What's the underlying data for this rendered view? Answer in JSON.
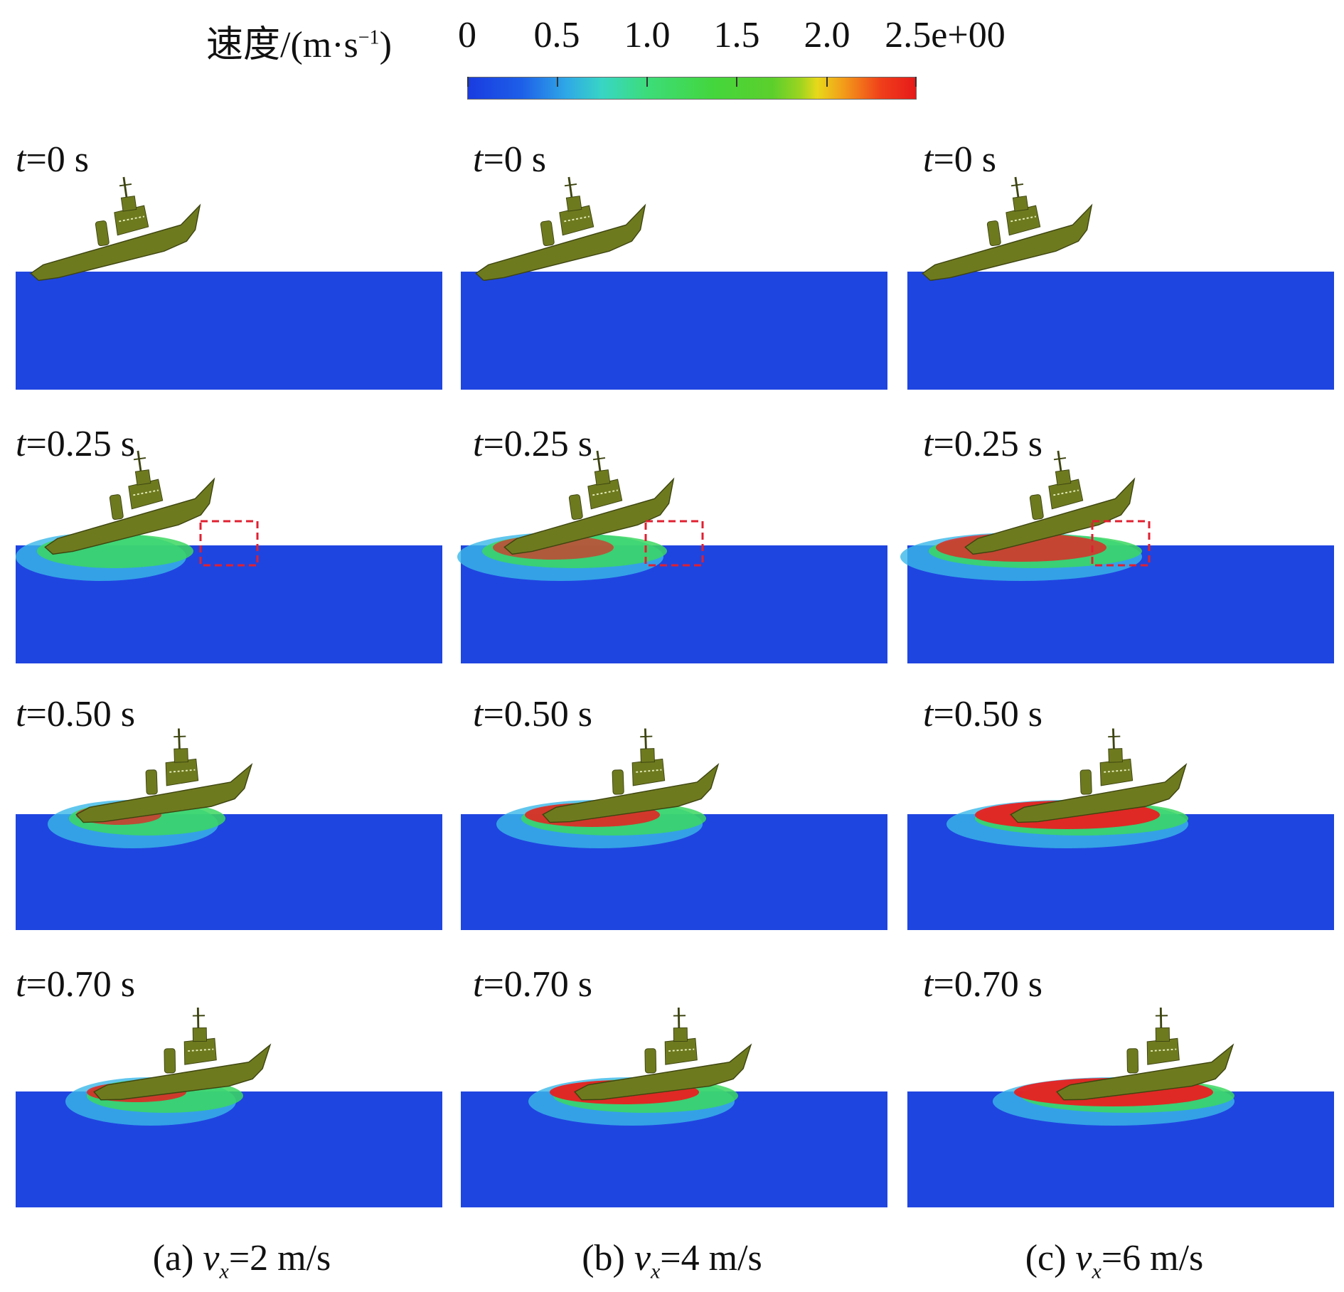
{
  "colorbar": {
    "title_main": "速度/(m·s",
    "title_sup": "−1",
    "title_close": ")",
    "ticks": [
      "0",
      "0.5",
      "1.0",
      "1.5",
      "2.0",
      "2.5e+00"
    ]
  },
  "time_labels": {
    "prefix": "t",
    "rows": [
      "=0 s",
      "=0.25 s",
      "=0.50 s",
      "=0.70 s"
    ]
  },
  "captions": [
    {
      "prefix": "(a) ",
      "var": "v",
      "sub": "x",
      "value": "=2 m/s"
    },
    {
      "prefix": "(b) ",
      "var": "v",
      "sub": "x",
      "value": "=4 m/s"
    },
    {
      "prefix": "(c) ",
      "var": "v",
      "sub": "x",
      "value": "=6 m/s"
    }
  ],
  "colors": {
    "water": "#1f45e0",
    "hull": "#6e7a1e",
    "high_velocity": "#e82020",
    "mid_velocity": "#3cd860",
    "low_velocity": "#3ab8e8",
    "highlight_box": "#e02030"
  }
}
